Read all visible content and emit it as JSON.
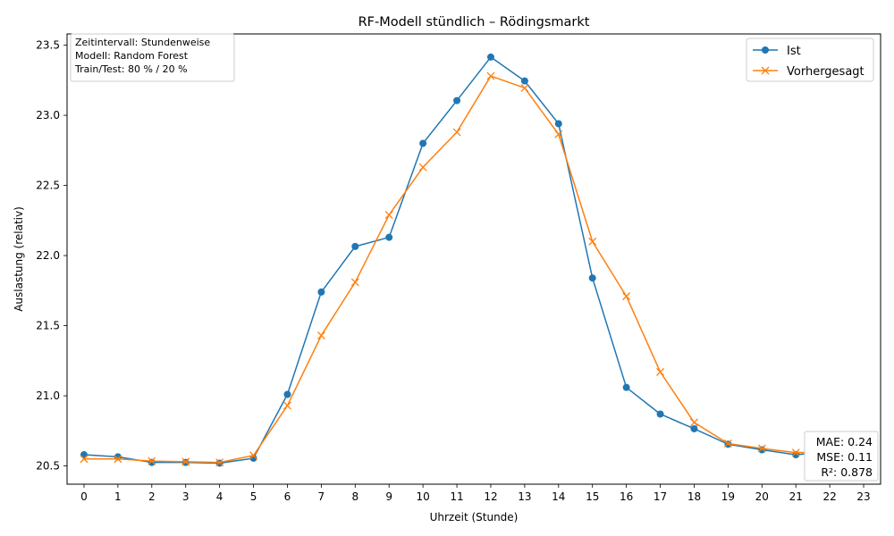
{
  "chart_data": {
    "type": "line",
    "title": "RF-Modell stündlich – Rödingsmarkt",
    "xlabel": "Uhrzeit (Stunde)",
    "ylabel": "Auslastung (relativ)",
    "x": [
      0,
      1,
      2,
      3,
      4,
      5,
      6,
      7,
      8,
      9,
      10,
      11,
      12,
      13,
      14,
      15,
      16,
      17,
      18,
      19,
      20,
      21,
      22,
      23
    ],
    "xlim": [
      -0.5,
      23.5
    ],
    "ylim": [
      20.37,
      23.58
    ],
    "yticks": [
      20.5,
      21.0,
      21.5,
      22.0,
      22.5,
      23.0,
      23.5
    ],
    "ytick_labels": [
      "20.5",
      "21.0",
      "21.5",
      "22.0",
      "22.5",
      "23.0",
      "23.5"
    ],
    "xtick_labels": [
      "0",
      "1",
      "2",
      "3",
      "4",
      "5",
      "6",
      "7",
      "8",
      "9",
      "10",
      "11",
      "12",
      "13",
      "14",
      "15",
      "16",
      "17",
      "18",
      "19",
      "20",
      "21",
      "22",
      "23"
    ],
    "grid": false,
    "legend_position": "top-right",
    "series": [
      {
        "name": "Ist",
        "color": "#1f77b4",
        "marker": "circle",
        "values": [
          20.58,
          20.565,
          20.525,
          20.525,
          20.52,
          20.555,
          21.01,
          21.74,
          22.065,
          22.13,
          22.8,
          23.105,
          23.415,
          23.245,
          22.94,
          21.84,
          21.06,
          20.87,
          20.765,
          20.655,
          20.615,
          20.58,
          20.6,
          20.6
        ]
      },
      {
        "name": "Vorhergesagt",
        "color": "#ff7f0e",
        "marker": "x",
        "values": [
          20.55,
          20.55,
          20.535,
          20.53,
          20.525,
          20.575,
          20.93,
          21.43,
          21.81,
          22.29,
          22.63,
          22.88,
          23.28,
          23.195,
          22.865,
          22.1,
          21.71,
          21.17,
          20.81,
          20.66,
          20.625,
          20.595,
          20.6,
          20.605
        ]
      }
    ],
    "info_box": {
      "position": "top-left",
      "lines": [
        "Zeitintervall: Stundenweise",
        "Modell: Random Forest",
        "Train/Test: 80 % / 20 %"
      ]
    },
    "metrics_box": {
      "position": "bottom-right",
      "lines": [
        "MAE: 0.24",
        "MSE: 0.11",
        "R²: 0.878"
      ]
    }
  }
}
